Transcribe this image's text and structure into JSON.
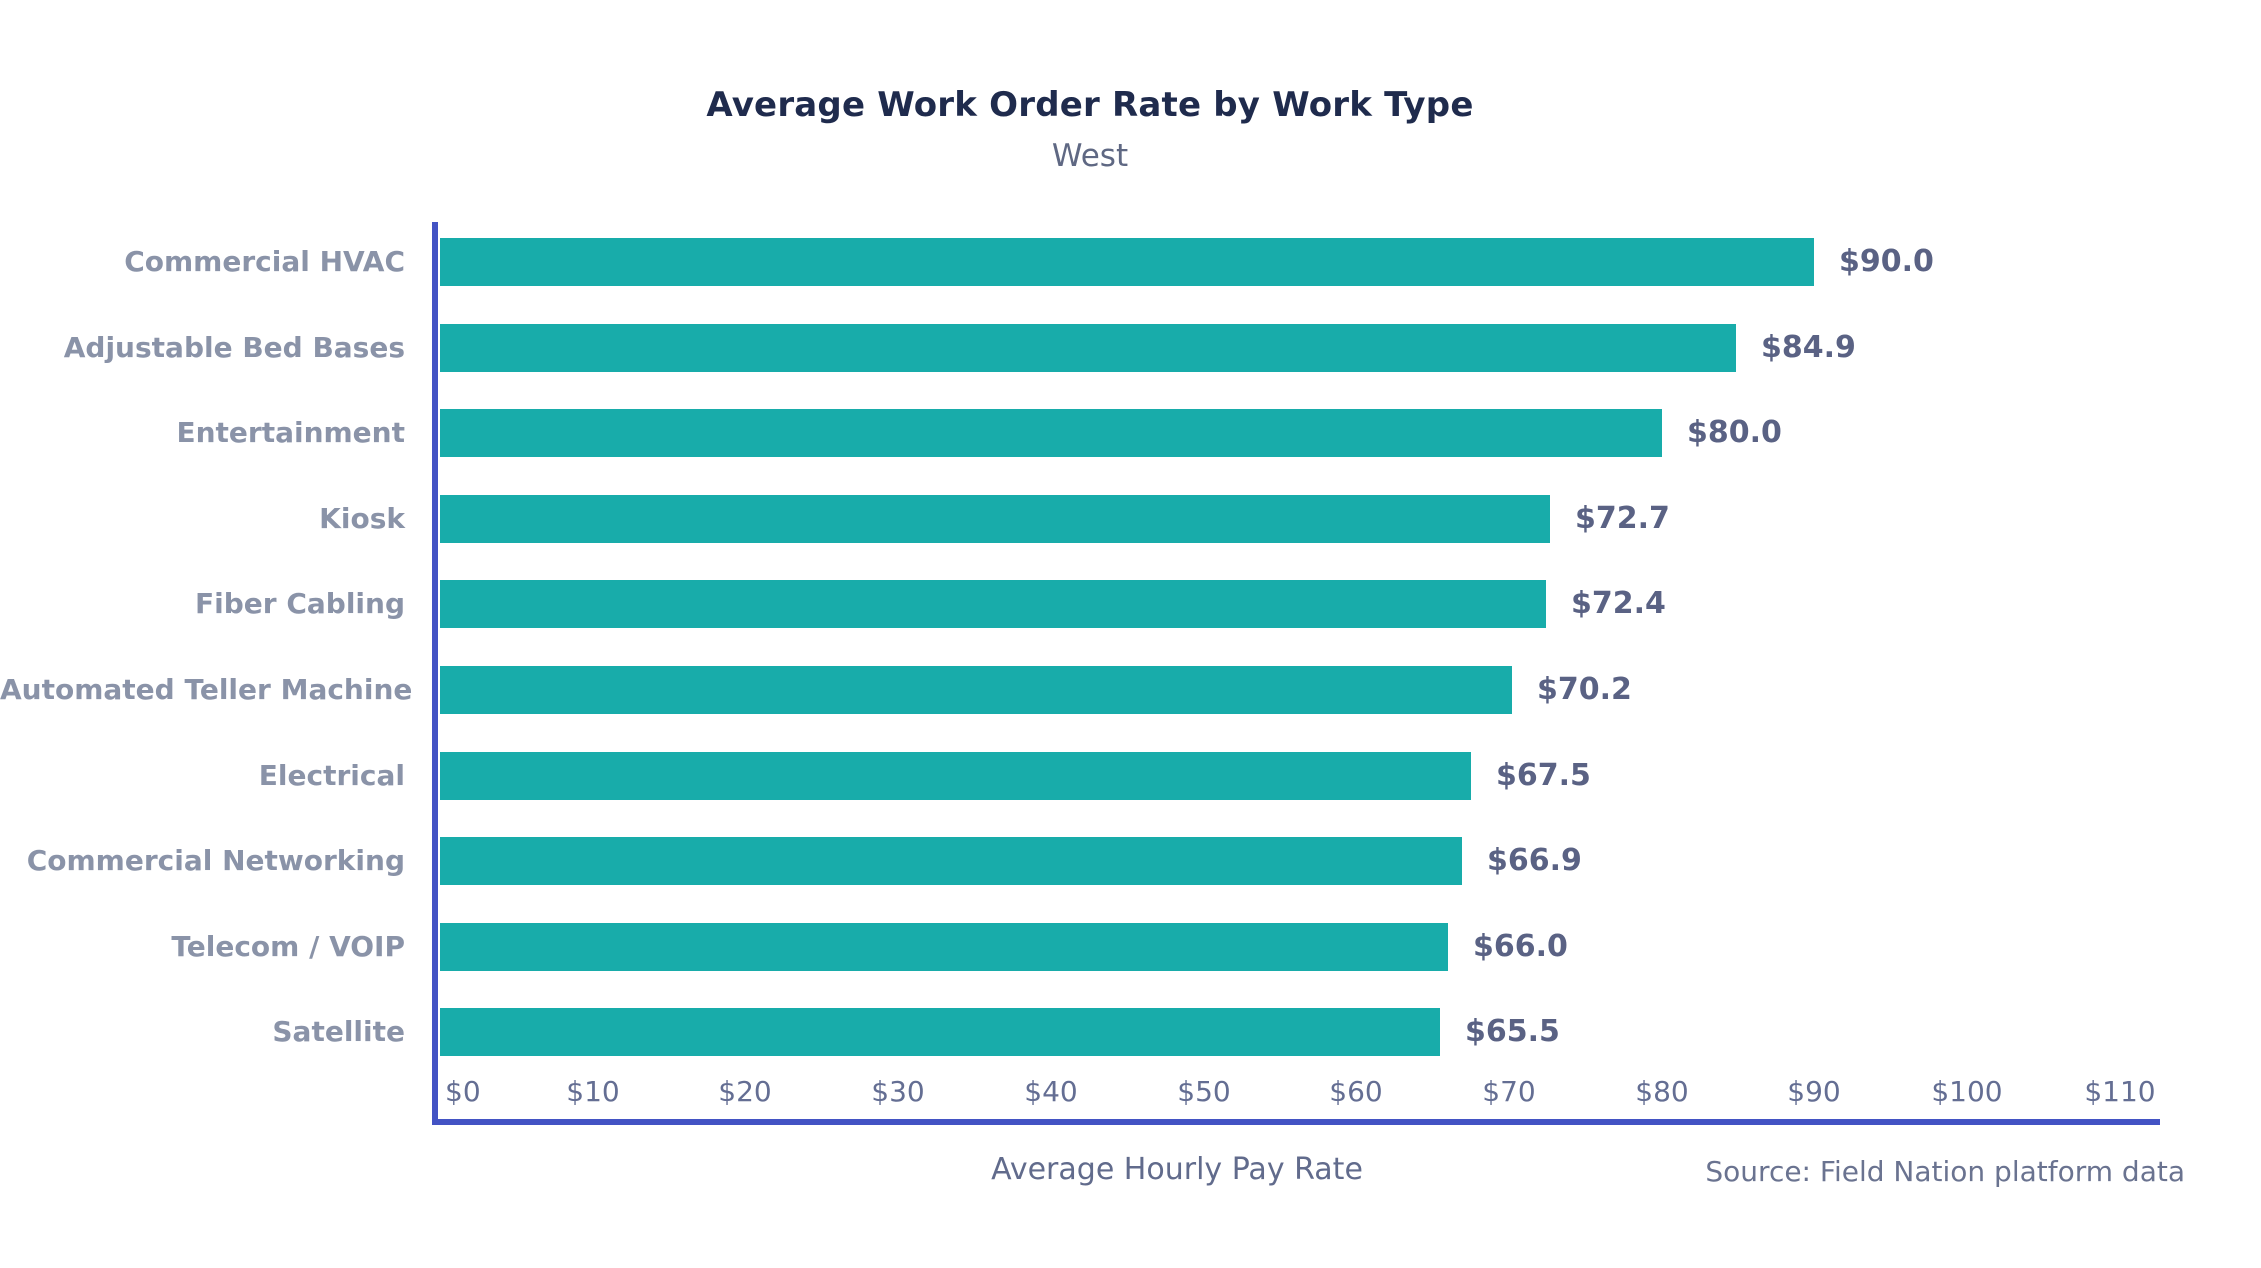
{
  "chart_data": {
    "type": "bar",
    "orientation": "horizontal",
    "title": "Average Work Order Rate by Work Type",
    "subtitle": "West",
    "xlabel": "Average Hourly Pay Rate",
    "source": "Source: Field Nation platform data",
    "categories": [
      "Commercial HVAC",
      "Adjustable Bed Bases",
      "Entertainment",
      "Kiosk",
      "Fiber Cabling",
      "Automated Teller Machine",
      "Electrical",
      "Commercial Networking",
      "Telecom / VOIP",
      "Satellite"
    ],
    "values": [
      90.0,
      84.9,
      80.0,
      72.7,
      72.4,
      70.2,
      67.5,
      66.9,
      66.0,
      65.5
    ],
    "value_labels": [
      "$90.0",
      "$84.9",
      "$80.0",
      "$72.7",
      "$72.4",
      "$70.2",
      "$67.5",
      "$66.9",
      "$66.0",
      "$65.5"
    ],
    "x_ticks": [
      {
        "value": 0,
        "label": "$0"
      },
      {
        "value": 10,
        "label": "$10"
      },
      {
        "value": 20,
        "label": "$20"
      },
      {
        "value": 30,
        "label": "$30"
      },
      {
        "value": 40,
        "label": "$40"
      },
      {
        "value": 50,
        "label": "$50"
      },
      {
        "value": 60,
        "label": "$60"
      },
      {
        "value": 70,
        "label": "$70"
      },
      {
        "value": 80,
        "label": "$80"
      },
      {
        "value": 90,
        "label": "$90"
      },
      {
        "value": 100,
        "label": "$100"
      },
      {
        "value": 110,
        "label": "$110"
      }
    ],
    "xlim": [
      0,
      112
    ],
    "grid": false,
    "legend": "none",
    "colors": {
      "bar": "#18acaa",
      "axis": "#4353c4",
      "title": "#1f2b4d",
      "subtitle": "#5f6883",
      "category_label": "#8a93a8",
      "value_label": "#5a6284",
      "tick_label": "#646e93",
      "axis_label": "#616b8c",
      "source": "#6a7390",
      "background": "#ffffff"
    }
  }
}
